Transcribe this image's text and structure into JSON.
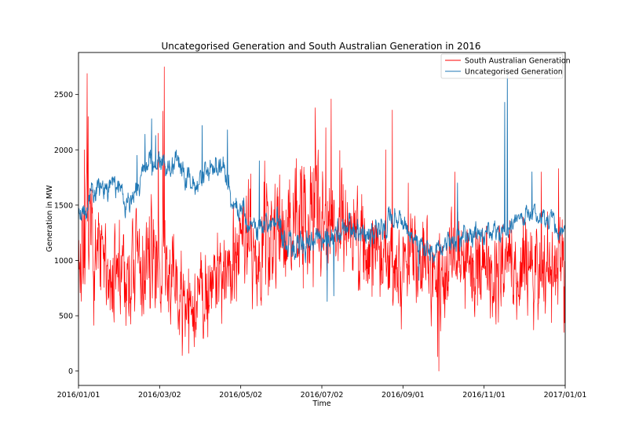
{
  "chart_data": {
    "type": "line",
    "title": "Uncategorised Generation and South Australian Generation in 2016",
    "xlabel": "Time",
    "ylabel": "Generation in MW",
    "xlim": [
      0,
      366
    ],
    "ylim": [
      -130,
      2880
    ],
    "x_ticks": [
      {
        "day": 0,
        "label": "2016/01/01"
      },
      {
        "day": 61,
        "label": "2016/03/02"
      },
      {
        "day": 122,
        "label": "2016/05/02"
      },
      {
        "day": 183,
        "label": "2016/07/02"
      },
      {
        "day": 244,
        "label": "2016/09/01"
      },
      {
        "day": 305,
        "label": "2016/11/01"
      },
      {
        "day": 366,
        "label": "2017/01/01"
      }
    ],
    "y_ticks": [
      0,
      500,
      1000,
      1500,
      2000,
      2500
    ],
    "legend": {
      "location": "top-right"
    },
    "series": [
      {
        "name": "South Australian Generation",
        "color": "#ff0000",
        "x_days": [
          0,
          5,
          10,
          15,
          20,
          25,
          30,
          35,
          40,
          45,
          50,
          55,
          60,
          65,
          70,
          75,
          80,
          85,
          90,
          95,
          100,
          105,
          110,
          115,
          120,
          125,
          130,
          135,
          140,
          145,
          150,
          155,
          160,
          165,
          170,
          175,
          180,
          185,
          190,
          195,
          200,
          205,
          210,
          215,
          220,
          225,
          230,
          235,
          240,
          245,
          250,
          255,
          260,
          265,
          270,
          275,
          280,
          285,
          290,
          295,
          300,
          305,
          310,
          315,
          320,
          325,
          330,
          335,
          340,
          345,
          350,
          355,
          360,
          366
        ],
        "center": [
          1050,
          1150,
          1100,
          1000,
          950,
          900,
          850,
          800,
          850,
          900,
          950,
          1000,
          1050,
          950,
          800,
          650,
          600,
          550,
          650,
          750,
          850,
          900,
          950,
          1050,
          1150,
          1200,
          1200,
          1150,
          1200,
          1250,
          1300,
          1350,
          1350,
          1300,
          1300,
          1350,
          1400,
          1450,
          1450,
          1400,
          1350,
          1300,
          1200,
          1150,
          1100,
          1050,
          1000,
          1000,
          950,
          950,
          1000,
          1050,
          1000,
          950,
          900,
          900,
          950,
          1000,
          1000,
          950,
          950,
          950,
          950,
          950,
          950,
          950,
          950,
          950,
          950,
          950,
          950,
          950,
          950,
          950
        ],
        "amplitude": [
          450,
          500,
          450,
          450,
          450,
          450,
          450,
          400,
          400,
          450,
          500,
          500,
          500,
          450,
          400,
          350,
          350,
          300,
          350,
          400,
          400,
          400,
          400,
          450,
          500,
          500,
          500,
          500,
          500,
          500,
          500,
          550,
          550,
          550,
          550,
          550,
          550,
          550,
          550,
          550,
          500,
          500,
          500,
          450,
          450,
          450,
          400,
          400,
          400,
          400,
          400,
          400,
          400,
          400,
          400,
          400,
          400,
          400,
          400,
          400,
          400,
          400,
          400,
          400,
          400,
          400,
          400,
          400,
          400,
          400,
          400,
          400,
          400,
          400
        ],
        "spikes": [
          {
            "day": 6.5,
            "value": 2690
          },
          {
            "day": 4.5,
            "value": 2000
          },
          {
            "day": 7.2,
            "value": 2300
          },
          {
            "day": 64.5,
            "value": 2750
          },
          {
            "day": 63.5,
            "value": 2350
          },
          {
            "day": 60,
            "value": 2150
          },
          {
            "day": 178,
            "value": 2380
          },
          {
            "day": 190,
            "value": 2460
          },
          {
            "day": 186,
            "value": 2200
          },
          {
            "day": 236,
            "value": 2360
          },
          {
            "day": 231,
            "value": 2000
          },
          {
            "day": 248,
            "value": 1700
          },
          {
            "day": 271,
            "value": 0
          },
          {
            "day": 270,
            "value": 130
          },
          {
            "day": 78,
            "value": 140
          },
          {
            "day": 83,
            "value": 160
          },
          {
            "day": 283,
            "value": 1800
          },
          {
            "day": 348,
            "value": 1800
          },
          {
            "day": 361,
            "value": 1830
          },
          {
            "day": 365,
            "value": 350
          },
          {
            "day": 140,
            "value": 1900
          }
        ]
      },
      {
        "name": "Uncategorised Generation",
        "color": "#1f77b4",
        "x_days": [
          0,
          5,
          10,
          15,
          20,
          25,
          30,
          35,
          40,
          45,
          50,
          55,
          60,
          65,
          70,
          75,
          80,
          85,
          90,
          95,
          100,
          105,
          110,
          115,
          120,
          125,
          130,
          135,
          140,
          145,
          150,
          155,
          160,
          165,
          170,
          175,
          180,
          185,
          190,
          195,
          200,
          205,
          210,
          215,
          220,
          225,
          230,
          235,
          240,
          245,
          250,
          255,
          260,
          265,
          270,
          275,
          280,
          285,
          290,
          295,
          300,
          305,
          310,
          315,
          320,
          325,
          330,
          335,
          340,
          345,
          350,
          355,
          360,
          366
        ],
        "center": [
          1450,
          1450,
          1600,
          1650,
          1650,
          1700,
          1650,
          1500,
          1550,
          1700,
          1850,
          1900,
          1900,
          1850,
          1850,
          1850,
          1750,
          1700,
          1750,
          1800,
          1800,
          1850,
          1800,
          1550,
          1500,
          1400,
          1350,
          1300,
          1300,
          1350,
          1350,
          1200,
          1150,
          1100,
          1100,
          1150,
          1200,
          1200,
          1250,
          1250,
          1300,
          1300,
          1250,
          1250,
          1200,
          1250,
          1300,
          1400,
          1400,
          1300,
          1200,
          1150,
          1100,
          1050,
          1100,
          1150,
          1150,
          1150,
          1200,
          1250,
          1250,
          1250,
          1250,
          1250,
          1250,
          1300,
          1350,
          1400,
          1400,
          1400,
          1350,
          1350,
          1300,
          1250
        ],
        "amplitude": [
          120,
          150,
          150,
          130,
          130,
          120,
          150,
          150,
          150,
          120,
          150,
          150,
          120,
          130,
          150,
          130,
          130,
          150,
          150,
          150,
          170,
          170,
          150,
          150,
          120,
          150,
          150,
          150,
          150,
          150,
          200,
          200,
          200,
          200,
          200,
          150,
          130,
          130,
          150,
          150,
          150,
          150,
          150,
          150,
          150,
          150,
          150,
          150,
          120,
          120,
          120,
          120,
          120,
          120,
          120,
          120,
          120,
          150,
          150,
          150,
          120,
          120,
          120,
          120,
          100,
          100,
          100,
          100,
          100,
          120,
          120,
          120,
          120,
          120
        ],
        "spikes": [
          {
            "day": 44,
            "value": 1950
          },
          {
            "day": 50,
            "value": 2140
          },
          {
            "day": 58,
            "value": 2130
          },
          {
            "day": 55,
            "value": 2280
          },
          {
            "day": 93,
            "value": 2220
          },
          {
            "day": 112,
            "value": 2180
          },
          {
            "day": 136,
            "value": 1900
          },
          {
            "day": 187,
            "value": 630
          },
          {
            "day": 192,
            "value": 680
          },
          {
            "day": 285,
            "value": 1700
          },
          {
            "day": 320.5,
            "value": 2430
          },
          {
            "day": 322.5,
            "value": 2690
          },
          {
            "day": 341,
            "value": 1800
          },
          {
            "day": 256,
            "value": 820
          }
        ]
      }
    ]
  }
}
